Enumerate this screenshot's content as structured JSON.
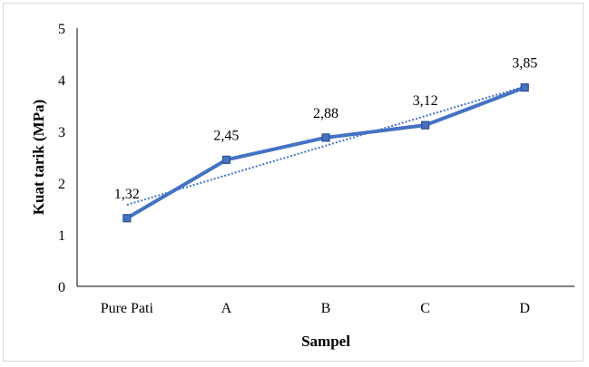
{
  "chart_data": {
    "type": "line",
    "categories": [
      "Pure Pati",
      "A",
      "B",
      "C",
      "D"
    ],
    "series": [
      {
        "values": [
          1.32,
          2.45,
          2.88,
          3.12,
          3.85
        ],
        "color": "#4472c4",
        "marker": "square"
      }
    ],
    "data_labels": [
      "1,32",
      "2,45",
      "2,88",
      "3,12",
      "3,85"
    ],
    "trendline": {
      "type": "linear",
      "style": "dotted",
      "color": "#4472c4"
    },
    "xlabel": "Sampel",
    "ylabel": "Kuat tarik (MPa)",
    "ylim": [
      0,
      5
    ],
    "yticks": [
      "0",
      "1",
      "2",
      "3",
      "4",
      "5"
    ],
    "grid": false,
    "legend": "none"
  }
}
